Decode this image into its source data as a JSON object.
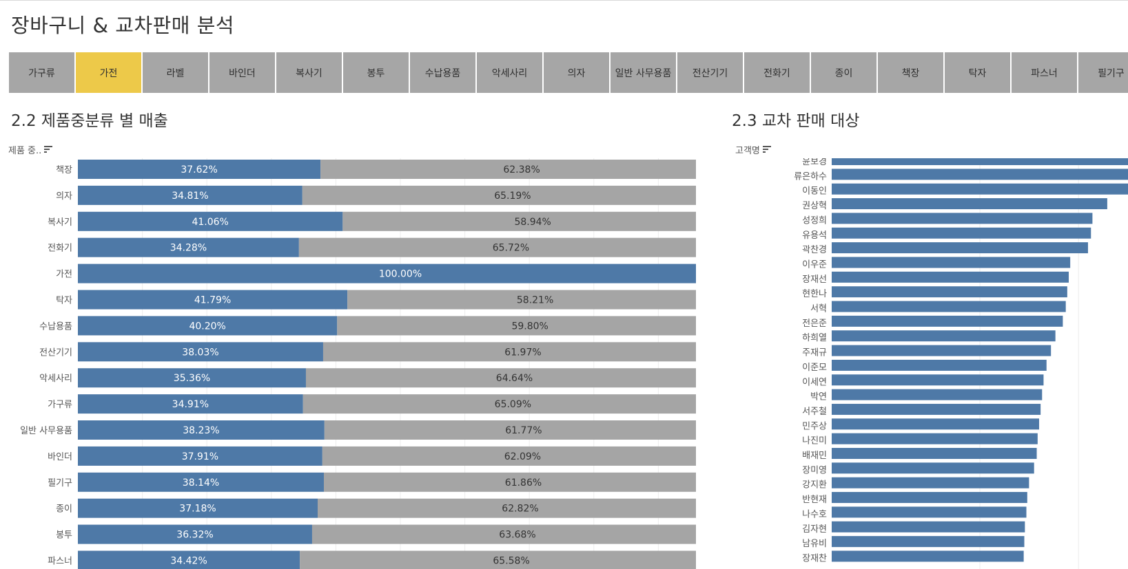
{
  "dashboard": {
    "title": "장바구니 & 교차판매 분석"
  },
  "filters": {
    "items": [
      "가구류",
      "가전",
      "라벨",
      "바인더",
      "복사기",
      "봉투",
      "수납용품",
      "악세사리",
      "의자",
      "일반 사무용품",
      "전산기기",
      "전화기",
      "종이",
      "책장",
      "탁자",
      "파스너",
      "필기구"
    ],
    "selected": "가전",
    "colors": {
      "normal": "#a6a6a6",
      "selected": "#edc949"
    }
  },
  "section_left": {
    "title": "2.2 제품중분류 별 매출",
    "axis_header": "제품 중.."
  },
  "section_right": {
    "title": "2.3 교차 판매 대상",
    "axis_header": "고객명"
  },
  "chart_data": [
    {
      "type": "bar",
      "stacked": true,
      "orientation": "horizontal",
      "percent_of_total": true,
      "categories": [
        "책장",
        "의자",
        "복사기",
        "전화기",
        "가전",
        "탁자",
        "수납용품",
        "전산기기",
        "악세사리",
        "가구류",
        "일반 사무용품",
        "바인더",
        "필기구",
        "종이",
        "봉투",
        "파스너"
      ],
      "series": [
        {
          "values": [
            37.62,
            34.81,
            41.06,
            34.28,
            100.0,
            41.79,
            40.2,
            38.03,
            35.36,
            34.91,
            38.23,
            37.91,
            38.14,
            37.18,
            36.32,
            34.42
          ],
          "color": "#4e79a7"
        },
        {
          "values": [
            62.38,
            65.19,
            58.94,
            65.72,
            0,
            58.21,
            59.8,
            61.97,
            64.64,
            65.09,
            61.77,
            62.09,
            61.86,
            62.82,
            63.68,
            65.58
          ],
          "color": "#a5a5a5"
        }
      ],
      "data_labels": [
        [
          "37.62%",
          "62.38%"
        ],
        [
          "34.81%",
          "65.19%"
        ],
        [
          "41.06%",
          "58.94%"
        ],
        [
          "34.28%",
          "65.72%"
        ],
        [
          "100.00%",
          ""
        ],
        [
          "41.79%",
          "58.21%"
        ],
        [
          "40.20%",
          "59.80%"
        ],
        [
          "38.03%",
          "61.97%"
        ],
        [
          "35.36%",
          "64.64%"
        ],
        [
          "34.91%",
          "65.09%"
        ],
        [
          "38.23%",
          "61.77%"
        ],
        [
          "37.91%",
          "62.09%"
        ],
        [
          "38.14%",
          "61.86%"
        ],
        [
          "37.18%",
          "62.82%"
        ],
        [
          "36.32%",
          "63.68%"
        ],
        [
          "34.42%",
          "65.58%"
        ]
      ],
      "xlim": [
        0,
        100
      ],
      "grid": true
    },
    {
      "type": "bar",
      "orientation": "horizontal",
      "categories": [
        "윤보경",
        "류은하수",
        "이동인",
        "권상혁",
        "성정희",
        "유용석",
        "곽찬경",
        "이우준",
        "장재선",
        "현한나",
        "서혁",
        "전은준",
        "하희열",
        "주재규",
        "이준모",
        "이세연",
        "박연",
        "서주철",
        "민주상",
        "나진미",
        "배재민",
        "장미영",
        "강지환",
        "반현재",
        "나수호",
        "김자현",
        "남유비",
        "장재찬"
      ],
      "values": [
        100,
        100,
        100,
        93,
        88,
        87.5,
        86.5,
        80.5,
        80,
        79.5,
        79,
        78,
        75.5,
        74,
        72.5,
        71.5,
        71,
        70.5,
        70,
        69.5,
        69.2,
        68.3,
        66.6,
        66,
        65.7,
        65.2,
        65,
        64.8
      ],
      "color": "#4e79a7",
      "grid": true
    }
  ]
}
